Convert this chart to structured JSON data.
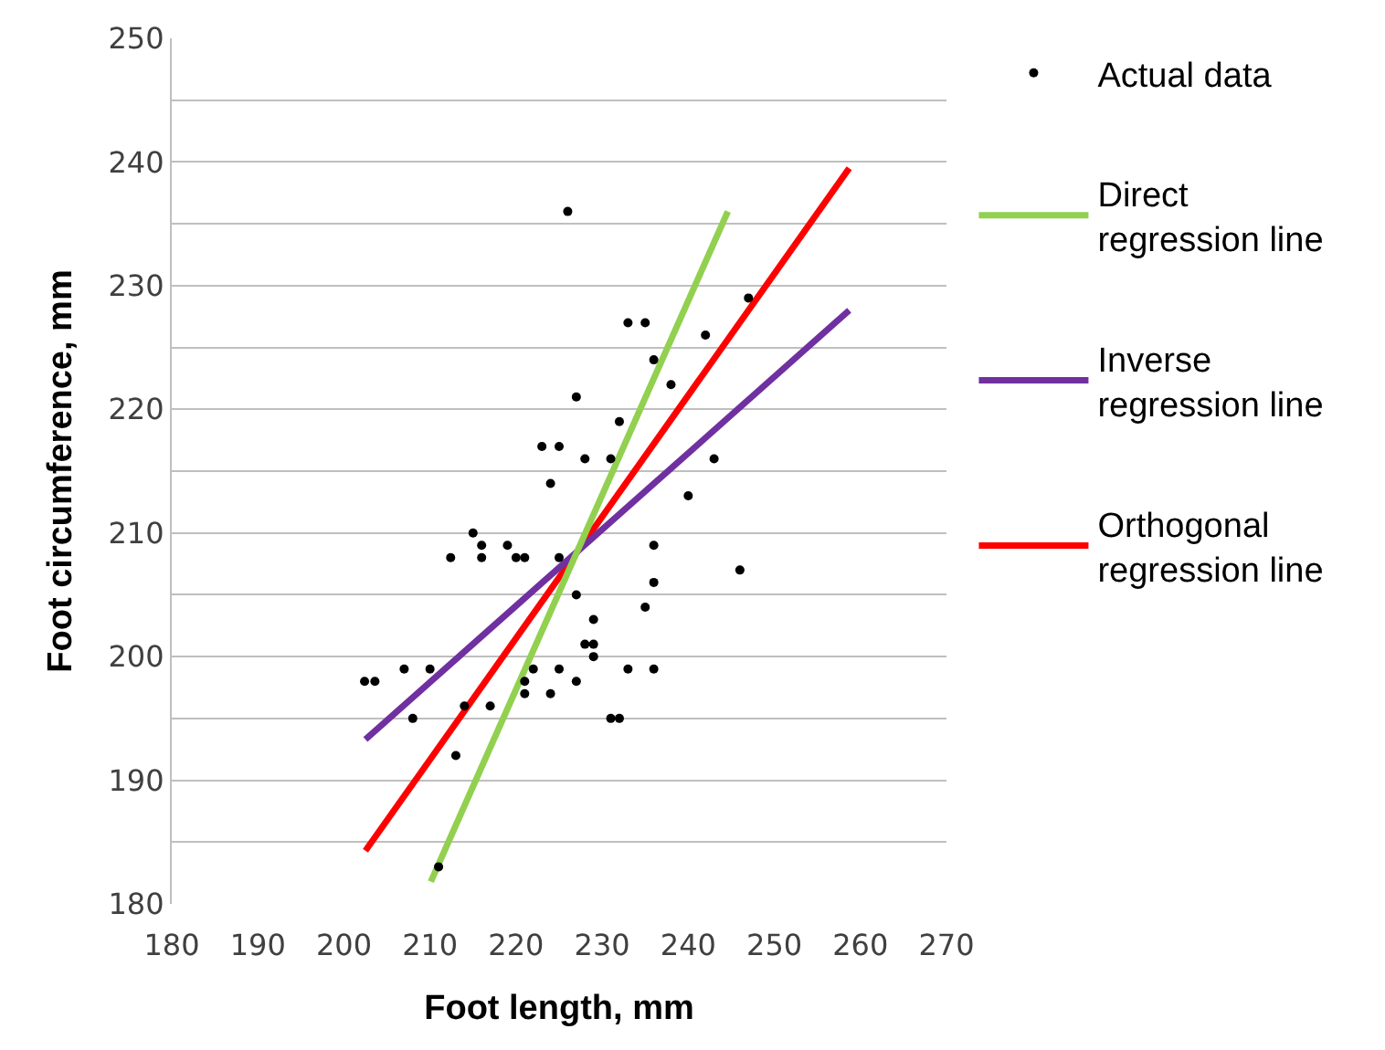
{
  "chart_data": {
    "type": "scatter",
    "xlabel": "Foot length, mm",
    "ylabel": "Foot circumference, mm",
    "xlim": [
      180,
      270
    ],
    "xticks": [
      180,
      190,
      200,
      210,
      220,
      230,
      240,
      250,
      260,
      270
    ],
    "ylim": [
      180,
      250
    ],
    "yticks": [
      180,
      {
        "value": 185,
        "label": null
      },
      190,
      {
        "value": 195,
        "label": null
      },
      200,
      {
        "value": 205,
        "label": null
      },
      210,
      {
        "value": 215,
        "label": null
      },
      220,
      {
        "value": 225,
        "label": null
      },
      230,
      {
        "value": 235,
        "label": null
      },
      240,
      {
        "value": 245,
        "label": null
      },
      250
    ],
    "grid": "y",
    "legend": "right",
    "marker": "circle",
    "series": [
      {
        "name": "Actual data",
        "color": "#000000",
        "x": [
          226,
          233,
          235,
          247,
          242,
          236,
          238,
          227,
          232,
          223,
          225,
          228,
          231,
          243,
          224,
          240,
          215,
          219,
          216,
          236,
          212.4,
          216,
          220,
          221,
          225,
          246,
          236,
          227,
          235,
          229,
          228,
          229,
          229,
          202.4,
          203.6,
          207,
          210,
          222,
          225,
          233,
          236,
          221,
          227,
          221,
          224,
          208,
          231,
          232,
          214,
          217,
          213,
          211
        ],
        "values": [
          236,
          227,
          227,
          229,
          226,
          224,
          222,
          221,
          219,
          217,
          217,
          216,
          216,
          216,
          214,
          213,
          210,
          209,
          209,
          209,
          208,
          208,
          208,
          208,
          208,
          207,
          206,
          205,
          204,
          203,
          201,
          201,
          200,
          198,
          198,
          199,
          199,
          199,
          199,
          199,
          199,
          198,
          198,
          197,
          197,
          195,
          195,
          195,
          196,
          196,
          192,
          183
        ]
      },
      {
        "name": "Direct regression line",
        "color": "#92d050",
        "type": "line",
        "marker": "none",
        "x": [
          210.1,
          244.6
        ],
        "values": [
          181.8,
          236
        ]
      },
      {
        "name": "Inverse regression line",
        "color": "#7030a0",
        "type": "line",
        "marker": "none",
        "x": [
          202.5,
          258.7
        ],
        "values": [
          193.3,
          228
        ]
      },
      {
        "name": "Orthogonal regression line",
        "color": "#ff0000",
        "type": "line",
        "marker": "none",
        "x": [
          202.5,
          258.7
        ],
        "values": [
          184.3,
          239.5
        ]
      }
    ]
  }
}
